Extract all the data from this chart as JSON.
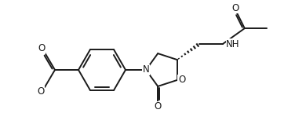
{
  "bg_color": "#ffffff",
  "line_color": "#1a1a1a",
  "lw": 1.4,
  "fs": 8.5,
  "fig_w": 3.9,
  "fig_h": 1.77,
  "dpi": 100,
  "xlim": [
    0,
    3.9
  ],
  "ylim": [
    0,
    1.77
  ],
  "bx": 1.3,
  "by": 0.88,
  "br": 0.3
}
